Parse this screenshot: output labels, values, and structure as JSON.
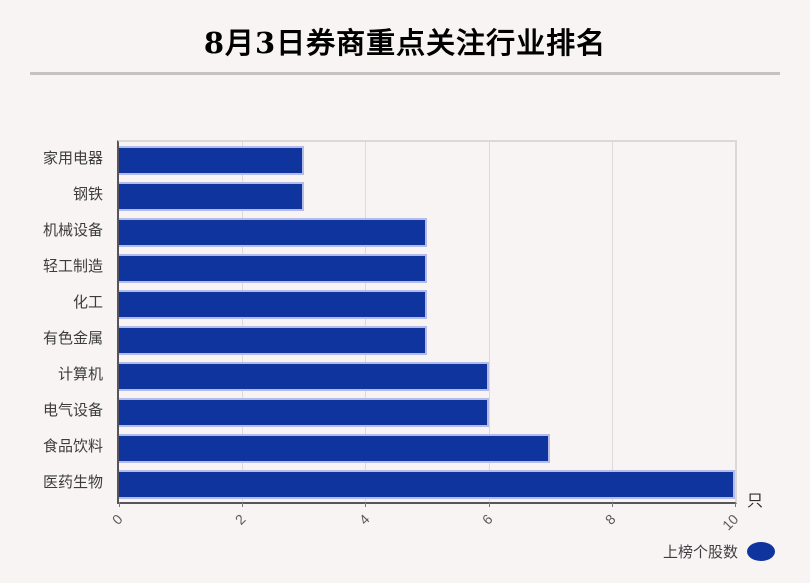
{
  "page": {
    "background": "#f8f4f4"
  },
  "header": {
    "title": "8月3日券商重点关注行业排名"
  },
  "chart_data": {
    "type": "bar",
    "orientation": "horizontal",
    "title": "8月3日券商重点关注行业排名",
    "categories": [
      "家用电器",
      "钢铁",
      "机械设备",
      "轻工制造",
      "化工",
      "有色金属",
      "计算机",
      "电气设备",
      "食品饮料",
      "医药生物"
    ],
    "values": [
      3,
      3,
      5,
      5,
      5,
      5,
      6,
      6,
      7,
      10
    ],
    "series_name": "上榜个股数",
    "unit": "只",
    "xlim": [
      0,
      10
    ],
    "xticks": [
      0,
      2,
      4,
      6,
      8,
      10
    ],
    "xtick_labels": [
      "0",
      "2",
      "4",
      "6",
      "8",
      "10"
    ],
    "grid": true,
    "legend_position": "bottom-right",
    "bar_color": "#10349e",
    "bar_border_color": "#b4bce6",
    "background_color": "#f8f4f4"
  },
  "axis": {
    "unit_label": "只"
  },
  "legend": {
    "label": "上榜个股数"
  }
}
